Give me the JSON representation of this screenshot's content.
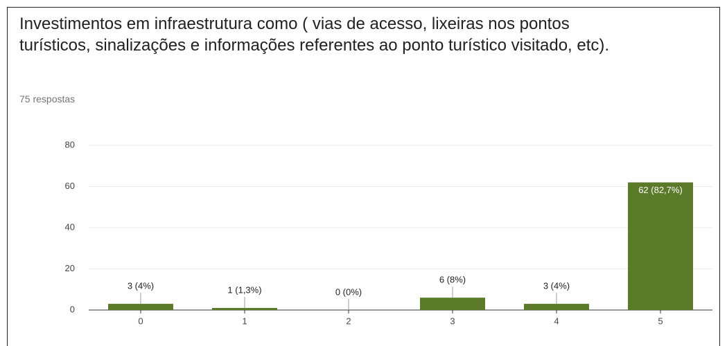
{
  "chart_data": {
    "type": "bar",
    "title": "Investimentos em infraestrutura como ( vias de acesso, lixeiras nos pontos turísticos, sinalizações e informações referentes ao ponto turístico visitado, etc).",
    "subtitle": "75 respostas",
    "categories": [
      "0",
      "1",
      "2",
      "3",
      "4",
      "5"
    ],
    "values": [
      3,
      1,
      0,
      6,
      3,
      62
    ],
    "value_labels": [
      "3 (4%)",
      "1 (1,3%)",
      "0 (0%)",
      "6 (8%)",
      "3 (4%)",
      "62 (82,7%)"
    ],
    "color": "#5b7a2a",
    "ylim": [
      0,
      80
    ],
    "yticks": [
      0,
      20,
      40,
      60,
      80
    ],
    "grid": true
  }
}
